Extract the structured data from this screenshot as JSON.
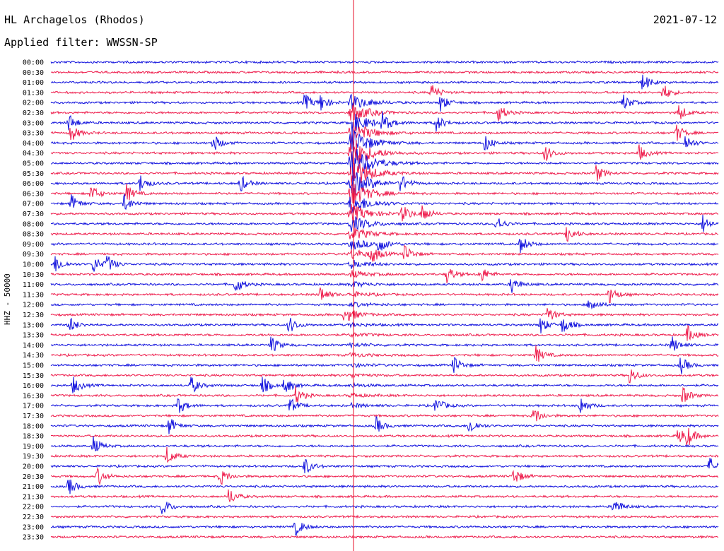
{
  "header": {
    "station": "HL Archagelos (Rhodos)",
    "date": "2021-07-12",
    "filter": "Applied filter: WWSSN-SP"
  },
  "colors": {
    "trace_a": "#1010dd",
    "trace_b": "#ee1c4c",
    "marker": "#e8102a",
    "text": "#000000"
  },
  "chart_data": {
    "type": "line",
    "ylabel": "HHZ - 50000",
    "rows": [
      "00:00",
      "00:30",
      "01:00",
      "01:30",
      "02:00",
      "02:30",
      "03:00",
      "03:30",
      "04:00",
      "04:30",
      "05:00",
      "05:30",
      "06:00",
      "06:30",
      "07:00",
      "07:30",
      "08:00",
      "08:30",
      "09:00",
      "09:30",
      "10:00",
      "10:30",
      "11:00",
      "11:30",
      "12:00",
      "12:30",
      "13:00",
      "13:30",
      "14:00",
      "14:30",
      "15:00",
      "15:30",
      "16:00",
      "16:30",
      "17:00",
      "17:30",
      "18:00",
      "18:30",
      "19:00",
      "19:30",
      "20:00",
      "20:30",
      "21:00",
      "21:30",
      "22:00",
      "22:30",
      "23:00",
      "23:30"
    ],
    "row_minutes": 30,
    "color_cycle": [
      "trace_a",
      "trace_b"
    ],
    "marker_minute": 13.6,
    "grid": false,
    "main_event": {
      "start_row": 4,
      "end_row": 34,
      "minute": 13.5,
      "peak_row": 10
    },
    "events": [
      [
        2,
        26.6
      ],
      [
        3,
        17.1
      ],
      [
        3,
        27.5
      ],
      [
        4,
        11.4
      ],
      [
        4,
        12.1
      ],
      [
        4,
        17.5
      ],
      [
        4,
        25.7
      ],
      [
        5,
        20.1
      ],
      [
        5,
        28.2
      ],
      [
        6,
        0.8
      ],
      [
        6,
        14.9
      ],
      [
        6,
        17.3
      ],
      [
        7,
        28.1
      ],
      [
        7,
        0.9
      ],
      [
        8,
        19.5
      ],
      [
        8,
        7.3
      ],
      [
        8,
        28.5
      ],
      [
        9,
        26.4
      ],
      [
        9,
        22.2
      ],
      [
        11,
        24.5
      ],
      [
        12,
        4.0
      ],
      [
        12,
        8.5
      ],
      [
        12,
        15.7
      ],
      [
        13,
        1.8
      ],
      [
        13,
        3.4
      ],
      [
        14,
        0.9
      ],
      [
        14,
        3.3
      ],
      [
        15,
        15.8
      ],
      [
        15,
        16.7
      ],
      [
        16,
        20.0
      ],
      [
        16,
        29.3
      ],
      [
        17,
        23.2
      ],
      [
        18,
        14.7
      ],
      [
        18,
        21.1
      ],
      [
        19,
        14.4
      ],
      [
        19,
        15.9
      ],
      [
        20,
        0.2
      ],
      [
        20,
        1.9
      ],
      [
        20,
        2.5
      ],
      [
        21,
        17.8
      ],
      [
        21,
        19.3
      ],
      [
        22,
        8.3
      ],
      [
        22,
        20.7
      ],
      [
        23,
        12.1
      ],
      [
        23,
        25.1
      ],
      [
        24,
        24.2
      ],
      [
        25,
        13.2
      ],
      [
        25,
        22.3
      ],
      [
        26,
        0.8
      ],
      [
        26,
        10.7
      ],
      [
        26,
        22.0
      ],
      [
        26,
        23.0
      ],
      [
        27,
        28.6
      ],
      [
        28,
        9.9
      ],
      [
        28,
        27.9
      ],
      [
        29,
        21.8
      ],
      [
        30,
        18.1
      ],
      [
        30,
        28.3
      ],
      [
        31,
        26.0
      ],
      [
        32,
        1.0
      ],
      [
        32,
        6.3
      ],
      [
        32,
        9.5
      ],
      [
        32,
        10.5
      ],
      [
        33,
        11.0
      ],
      [
        33,
        28.4
      ],
      [
        34,
        5.7
      ],
      [
        34,
        10.7
      ],
      [
        34,
        17.3
      ],
      [
        34,
        23.8
      ],
      [
        35,
        21.7
      ],
      [
        36,
        5.3
      ],
      [
        36,
        14.6
      ],
      [
        36,
        18.8
      ],
      [
        37,
        28.2
      ],
      [
        37,
        28.6
      ],
      [
        38,
        1.9
      ],
      [
        39,
        5.2
      ],
      [
        40,
        11.4
      ],
      [
        40,
        29.6
      ],
      [
        41,
        2.1
      ],
      [
        41,
        7.6
      ],
      [
        41,
        20.8
      ],
      [
        42,
        0.8
      ],
      [
        43,
        8.0
      ],
      [
        44,
        5.0
      ],
      [
        44,
        25.3
      ],
      [
        46,
        11.0
      ]
    ]
  }
}
